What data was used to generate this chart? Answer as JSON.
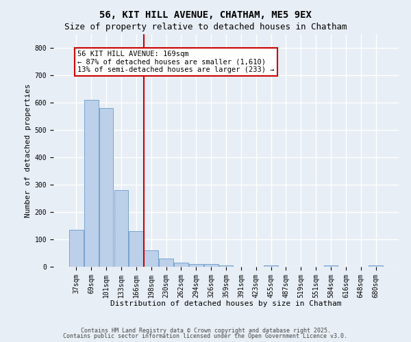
{
  "title": "56, KIT HILL AVENUE, CHATHAM, ME5 9EX",
  "subtitle": "Size of property relative to detached houses in Chatham",
  "xlabel": "Distribution of detached houses by size in Chatham",
  "ylabel": "Number of detached properties",
  "categories": [
    "37sqm",
    "69sqm",
    "101sqm",
    "133sqm",
    "166sqm",
    "198sqm",
    "230sqm",
    "262sqm",
    "294sqm",
    "326sqm",
    "359sqm",
    "391sqm",
    "423sqm",
    "455sqm",
    "487sqm",
    "519sqm",
    "551sqm",
    "584sqm",
    "616sqm",
    "648sqm",
    "680sqm"
  ],
  "values": [
    135,
    610,
    580,
    280,
    130,
    60,
    30,
    15,
    10,
    10,
    5,
    0,
    0,
    5,
    0,
    0,
    0,
    5,
    0,
    0,
    5
  ],
  "bar_color": "#bdd0e9",
  "bar_edge_color": "#6699cc",
  "red_line_x": 4.5,
  "annotation_text": "56 KIT HILL AVENUE: 169sqm\n← 87% of detached houses are smaller (1,610)\n13% of semi-detached houses are larger (233) →",
  "annotation_box_facecolor": "#ffffff",
  "annotation_box_edgecolor": "#cc0000",
  "ylim": [
    0,
    850
  ],
  "yticks": [
    0,
    100,
    200,
    300,
    400,
    500,
    600,
    700,
    800
  ],
  "background_color": "#e8eef5",
  "grid_color": "#ffffff",
  "footer_text1": "Contains HM Land Registry data © Crown copyright and database right 2025.",
  "footer_text2": "Contains public sector information licensed under the Open Government Licence v3.0.",
  "title_fontsize": 10,
  "subtitle_fontsize": 9,
  "xlabel_fontsize": 8,
  "ylabel_fontsize": 8,
  "tick_fontsize": 7,
  "annotation_fontsize": 7.5,
  "footer_fontsize": 6
}
